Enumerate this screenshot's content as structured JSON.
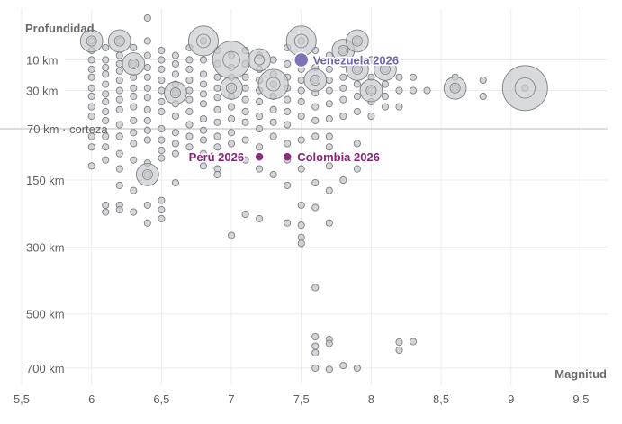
{
  "chart_data": {
    "type": "scatter",
    "xlabel": "Magnitud",
    "ylabel": "Profundidad",
    "xlim": [
      5.5,
      9.6
    ],
    "ylim_km": [
      0,
      750
    ],
    "y_scale": "sqrt",
    "grid": true,
    "x_ticks": [
      {
        "v": 5.5,
        "label": "5,5"
      },
      {
        "v": 6,
        "label": "6"
      },
      {
        "v": 6.5,
        "label": "6,5"
      },
      {
        "v": 7,
        "label": "7"
      },
      {
        "v": 7.5,
        "label": "7,5"
      },
      {
        "v": 8,
        "label": "8"
      },
      {
        "v": 8.5,
        "label": "8,5"
      },
      {
        "v": 9,
        "label": "9"
      },
      {
        "v": 9.5,
        "label": "9,5"
      }
    ],
    "y_ticks": [
      {
        "v": 10,
        "label": "10 km"
      },
      {
        "v": 30,
        "label": "30 km"
      },
      {
        "v": 150,
        "label": "150 km"
      },
      {
        "v": 300,
        "label": "300 km"
      },
      {
        "v": 500,
        "label": "500 km"
      },
      {
        "v": 700,
        "label": "700 km"
      }
    ],
    "reference_line": {
      "depth": 70,
      "label": "70 km · corteza"
    },
    "point_color": "#c9cbcf",
    "point_stroke": "#7a7d82",
    "highlights": [
      {
        "label": "Venezuela 2026",
        "mag": 7.5,
        "depth": 10,
        "color": "#7b74b8",
        "text_color": "#6d65ad",
        "anchor": "right"
      },
      {
        "label": "Perú 2026",
        "mag": 7.2,
        "depth": 110,
        "color": "#8a2d7f",
        "text_color": "#862577",
        "anchor": "left"
      },
      {
        "label": "Colombia 2026",
        "mag": 7.4,
        "depth": 110,
        "color": "#8a2d7f",
        "text_color": "#862577",
        "anchor": "right"
      }
    ],
    "points": [
      {
        "mag": 6.4,
        "depth": 0
      },
      {
        "mag": 6.0,
        "depth": 3
      },
      {
        "mag": 6.0,
        "depth": 6
      },
      {
        "mag": 6.0,
        "depth": 10
      },
      {
        "mag": 6.0,
        "depth": 15
      },
      {
        "mag": 6.0,
        "depth": 20
      },
      {
        "mag": 6.0,
        "depth": 28
      },
      {
        "mag": 6.0,
        "depth": 35
      },
      {
        "mag": 6.0,
        "depth": 45
      },
      {
        "mag": 6.0,
        "depth": 55
      },
      {
        "mag": 6.0,
        "depth": 80
      },
      {
        "mag": 6.0,
        "depth": 95
      },
      {
        "mag": 6.0,
        "depth": 125
      },
      {
        "mag": 6.1,
        "depth": 5
      },
      {
        "mag": 6.1,
        "depth": 10
      },
      {
        "mag": 6.1,
        "depth": 14
      },
      {
        "mag": 6.1,
        "depth": 18
      },
      {
        "mag": 6.1,
        "depth": 25
      },
      {
        "mag": 6.1,
        "depth": 33
      },
      {
        "mag": 6.1,
        "depth": 40
      },
      {
        "mag": 6.1,
        "depth": 50
      },
      {
        "mag": 6.1,
        "depth": 60
      },
      {
        "mag": 6.1,
        "depth": 80
      },
      {
        "mag": 6.1,
        "depth": 95
      },
      {
        "mag": 6.1,
        "depth": 115
      },
      {
        "mag": 6.1,
        "depth": 200
      },
      {
        "mag": 6.1,
        "depth": 215
      },
      {
        "mag": 6.2,
        "depth": 3
      },
      {
        "mag": 6.2,
        "depth": 8
      },
      {
        "mag": 6.2,
        "depth": 12
      },
      {
        "mag": 6.2,
        "depth": 16
      },
      {
        "mag": 6.2,
        "depth": 22
      },
      {
        "mag": 6.2,
        "depth": 30
      },
      {
        "mag": 6.2,
        "depth": 38
      },
      {
        "mag": 6.2,
        "depth": 48
      },
      {
        "mag": 6.2,
        "depth": 65
      },
      {
        "mag": 6.2,
        "depth": 80
      },
      {
        "mag": 6.2,
        "depth": 105
      },
      {
        "mag": 6.2,
        "depth": 130
      },
      {
        "mag": 6.2,
        "depth": 160
      },
      {
        "mag": 6.2,
        "depth": 200
      },
      {
        "mag": 6.2,
        "depth": 210
      },
      {
        "mag": 6.3,
        "depth": 5
      },
      {
        "mag": 6.3,
        "depth": 12
      },
      {
        "mag": 6.3,
        "depth": 20
      },
      {
        "mag": 6.3,
        "depth": 28
      },
      {
        "mag": 6.3,
        "depth": 35
      },
      {
        "mag": 6.3,
        "depth": 45
      },
      {
        "mag": 6.3,
        "depth": 60
      },
      {
        "mag": 6.3,
        "depth": 75
      },
      {
        "mag": 6.3,
        "depth": 90
      },
      {
        "mag": 6.3,
        "depth": 115
      },
      {
        "mag": 6.3,
        "depth": 170
      },
      {
        "mag": 6.3,
        "depth": 215
      },
      {
        "mag": 6.4,
        "depth": 3
      },
      {
        "mag": 6.4,
        "depth": 8
      },
      {
        "mag": 6.4,
        "depth": 14
      },
      {
        "mag": 6.4,
        "depth": 20
      },
      {
        "mag": 6.4,
        "depth": 28
      },
      {
        "mag": 6.4,
        "depth": 36
      },
      {
        "mag": 6.4,
        "depth": 48
      },
      {
        "mag": 6.4,
        "depth": 60
      },
      {
        "mag": 6.4,
        "depth": 72
      },
      {
        "mag": 6.4,
        "depth": 85
      },
      {
        "mag": 6.4,
        "depth": 120
      },
      {
        "mag": 6.4,
        "depth": 140
      },
      {
        "mag": 6.4,
        "depth": 200
      },
      {
        "mag": 6.4,
        "depth": 240
      },
      {
        "mag": 6.5,
        "depth": 6
      },
      {
        "mag": 6.5,
        "depth": 10
      },
      {
        "mag": 6.5,
        "depth": 15
      },
      {
        "mag": 6.5,
        "depth": 22
      },
      {
        "mag": 6.5,
        "depth": 30
      },
      {
        "mag": 6.5,
        "depth": 40
      },
      {
        "mag": 6.5,
        "depth": 50
      },
      {
        "mag": 6.5,
        "depth": 70
      },
      {
        "mag": 6.5,
        "depth": 85
      },
      {
        "mag": 6.5,
        "depth": 100
      },
      {
        "mag": 6.5,
        "depth": 112
      },
      {
        "mag": 6.5,
        "depth": 190
      },
      {
        "mag": 6.5,
        "depth": 210
      },
      {
        "mag": 6.5,
        "depth": 230
      },
      {
        "mag": 6.6,
        "depth": 8
      },
      {
        "mag": 6.6,
        "depth": 12
      },
      {
        "mag": 6.6,
        "depth": 18
      },
      {
        "mag": 6.6,
        "depth": 25
      },
      {
        "mag": 6.6,
        "depth": 32
      },
      {
        "mag": 6.6,
        "depth": 42
      },
      {
        "mag": 6.6,
        "depth": 55
      },
      {
        "mag": 6.6,
        "depth": 75
      },
      {
        "mag": 6.6,
        "depth": 90
      },
      {
        "mag": 6.6,
        "depth": 105
      },
      {
        "mag": 6.6,
        "depth": 155
      },
      {
        "mag": 6.7,
        "depth": 5
      },
      {
        "mag": 6.7,
        "depth": 10
      },
      {
        "mag": 6.7,
        "depth": 15
      },
      {
        "mag": 6.7,
        "depth": 22
      },
      {
        "mag": 6.7,
        "depth": 30
      },
      {
        "mag": 6.7,
        "depth": 38
      },
      {
        "mag": 6.7,
        "depth": 50
      },
      {
        "mag": 6.7,
        "depth": 65
      },
      {
        "mag": 6.7,
        "depth": 80
      },
      {
        "mag": 6.7,
        "depth": 95
      },
      {
        "mag": 6.8,
        "depth": 3
      },
      {
        "mag": 6.8,
        "depth": 10
      },
      {
        "mag": 6.8,
        "depth": 18
      },
      {
        "mag": 6.8,
        "depth": 25
      },
      {
        "mag": 6.8,
        "depth": 33
      },
      {
        "mag": 6.8,
        "depth": 42
      },
      {
        "mag": 6.8,
        "depth": 58
      },
      {
        "mag": 6.8,
        "depth": 72
      },
      {
        "mag": 6.8,
        "depth": 85
      },
      {
        "mag": 6.8,
        "depth": 105
      },
      {
        "mag": 6.8,
        "depth": 125
      },
      {
        "mag": 6.9,
        "depth": 6
      },
      {
        "mag": 6.9,
        "depth": 12
      },
      {
        "mag": 6.9,
        "depth": 20
      },
      {
        "mag": 6.9,
        "depth": 28
      },
      {
        "mag": 6.9,
        "depth": 36
      },
      {
        "mag": 6.9,
        "depth": 48
      },
      {
        "mag": 6.9,
        "depth": 62
      },
      {
        "mag": 6.9,
        "depth": 80
      },
      {
        "mag": 6.9,
        "depth": 95
      },
      {
        "mag": 6.9,
        "depth": 130
      },
      {
        "mag": 6.9,
        "depth": 140
      },
      {
        "mag": 7.0,
        "depth": 8
      },
      {
        "mag": 7.0,
        "depth": 14
      },
      {
        "mag": 7.0,
        "depth": 20
      },
      {
        "mag": 7.0,
        "depth": 28
      },
      {
        "mag": 7.0,
        "depth": 35
      },
      {
        "mag": 7.0,
        "depth": 45
      },
      {
        "mag": 7.0,
        "depth": 58
      },
      {
        "mag": 7.0,
        "depth": 75
      },
      {
        "mag": 7.0,
        "depth": 90
      },
      {
        "mag": 7.0,
        "depth": 110
      },
      {
        "mag": 7.0,
        "depth": 270
      },
      {
        "mag": 7.1,
        "depth": 6
      },
      {
        "mag": 7.1,
        "depth": 12
      },
      {
        "mag": 7.1,
        "depth": 20
      },
      {
        "mag": 7.1,
        "depth": 28
      },
      {
        "mag": 7.1,
        "depth": 38
      },
      {
        "mag": 7.1,
        "depth": 50
      },
      {
        "mag": 7.1,
        "depth": 62
      },
      {
        "mag": 7.1,
        "depth": 85
      },
      {
        "mag": 7.1,
        "depth": 115
      },
      {
        "mag": 7.1,
        "depth": 220
      },
      {
        "mag": 7.2,
        "depth": 8
      },
      {
        "mag": 7.2,
        "depth": 15
      },
      {
        "mag": 7.2,
        "depth": 22
      },
      {
        "mag": 7.2,
        "depth": 30
      },
      {
        "mag": 7.2,
        "depth": 40
      },
      {
        "mag": 7.2,
        "depth": 55
      },
      {
        "mag": 7.2,
        "depth": 70
      },
      {
        "mag": 7.2,
        "depth": 95
      },
      {
        "mag": 7.2,
        "depth": 130
      },
      {
        "mag": 7.2,
        "depth": 230
      },
      {
        "mag": 7.3,
        "depth": 10
      },
      {
        "mag": 7.3,
        "depth": 18
      },
      {
        "mag": 7.3,
        "depth": 25
      },
      {
        "mag": 7.3,
        "depth": 35
      },
      {
        "mag": 7.3,
        "depth": 48
      },
      {
        "mag": 7.3,
        "depth": 62
      },
      {
        "mag": 7.3,
        "depth": 80
      },
      {
        "mag": 7.3,
        "depth": 140
      },
      {
        "mag": 7.4,
        "depth": 5
      },
      {
        "mag": 7.4,
        "depth": 12
      },
      {
        "mag": 7.4,
        "depth": 20
      },
      {
        "mag": 7.4,
        "depth": 28
      },
      {
        "mag": 7.4,
        "depth": 38
      },
      {
        "mag": 7.4,
        "depth": 50
      },
      {
        "mag": 7.4,
        "depth": 65
      },
      {
        "mag": 7.4,
        "depth": 90
      },
      {
        "mag": 7.4,
        "depth": 115
      },
      {
        "mag": 7.4,
        "depth": 160
      },
      {
        "mag": 7.4,
        "depth": 240
      },
      {
        "mag": 7.5,
        "depth": 3
      },
      {
        "mag": 7.5,
        "depth": 15
      },
      {
        "mag": 7.5,
        "depth": 22
      },
      {
        "mag": 7.5,
        "depth": 30
      },
      {
        "mag": 7.5,
        "depth": 40
      },
      {
        "mag": 7.5,
        "depth": 55
      },
      {
        "mag": 7.5,
        "depth": 85
      },
      {
        "mag": 7.5,
        "depth": 130
      },
      {
        "mag": 7.5,
        "depth": 200
      },
      {
        "mag": 7.5,
        "depth": 245
      },
      {
        "mag": 7.5,
        "depth": 275
      },
      {
        "mag": 7.5,
        "depth": 290
      },
      {
        "mag": 7.6,
        "depth": 6
      },
      {
        "mag": 7.6,
        "depth": 14
      },
      {
        "mag": 7.6,
        "depth": 22
      },
      {
        "mag": 7.6,
        "depth": 32
      },
      {
        "mag": 7.6,
        "depth": 45
      },
      {
        "mag": 7.6,
        "depth": 60
      },
      {
        "mag": 7.6,
        "depth": 80
      },
      {
        "mag": 7.6,
        "depth": 155
      },
      {
        "mag": 7.6,
        "depth": 205
      },
      {
        "mag": 7.6,
        "depth": 415
      },
      {
        "mag": 7.6,
        "depth": 580
      },
      {
        "mag": 7.6,
        "depth": 615
      },
      {
        "mag": 7.6,
        "depth": 640
      },
      {
        "mag": 7.6,
        "depth": 700
      },
      {
        "mag": 7.7,
        "depth": 8
      },
      {
        "mag": 7.7,
        "depth": 15
      },
      {
        "mag": 7.7,
        "depth": 22
      },
      {
        "mag": 7.7,
        "depth": 30
      },
      {
        "mag": 7.7,
        "depth": 42
      },
      {
        "mag": 7.7,
        "depth": 58
      },
      {
        "mag": 7.7,
        "depth": 80
      },
      {
        "mag": 7.7,
        "depth": 95
      },
      {
        "mag": 7.7,
        "depth": 125
      },
      {
        "mag": 7.7,
        "depth": 170
      },
      {
        "mag": 7.7,
        "depth": 240
      },
      {
        "mag": 7.7,
        "depth": 590
      },
      {
        "mag": 7.7,
        "depth": 605
      },
      {
        "mag": 7.7,
        "depth": 705
      },
      {
        "mag": 7.8,
        "depth": 6
      },
      {
        "mag": 7.8,
        "depth": 12
      },
      {
        "mag": 7.8,
        "depth": 20
      },
      {
        "mag": 7.8,
        "depth": 28
      },
      {
        "mag": 7.8,
        "depth": 38
      },
      {
        "mag": 7.8,
        "depth": 55
      },
      {
        "mag": 7.8,
        "depth": 110
      },
      {
        "mag": 7.8,
        "depth": 150
      },
      {
        "mag": 7.8,
        "depth": 690
      },
      {
        "mag": 7.9,
        "depth": 3
      },
      {
        "mag": 7.9,
        "depth": 15
      },
      {
        "mag": 7.9,
        "depth": 25
      },
      {
        "mag": 7.9,
        "depth": 35
      },
      {
        "mag": 7.9,
        "depth": 50
      },
      {
        "mag": 7.9,
        "depth": 90
      },
      {
        "mag": 7.9,
        "depth": 130
      },
      {
        "mag": 7.9,
        "depth": 700
      },
      {
        "mag": 8.0,
        "depth": 10
      },
      {
        "mag": 8.0,
        "depth": 20
      },
      {
        "mag": 8.0,
        "depth": 30
      },
      {
        "mag": 8.0,
        "depth": 40
      },
      {
        "mag": 8.0,
        "depth": 55
      },
      {
        "mag": 8.1,
        "depth": 15
      },
      {
        "mag": 8.1,
        "depth": 25
      },
      {
        "mag": 8.1,
        "depth": 35
      },
      {
        "mag": 8.1,
        "depth": 45
      },
      {
        "mag": 8.2,
        "depth": 20
      },
      {
        "mag": 8.2,
        "depth": 30
      },
      {
        "mag": 8.2,
        "depth": 45
      },
      {
        "mag": 8.2,
        "depth": 600
      },
      {
        "mag": 8.2,
        "depth": 630
      },
      {
        "mag": 8.3,
        "depth": 20
      },
      {
        "mag": 8.3,
        "depth": 30
      },
      {
        "mag": 8.3,
        "depth": 598
      },
      {
        "mag": 8.4,
        "depth": 30
      },
      {
        "mag": 8.6,
        "depth": 20
      },
      {
        "mag": 8.6,
        "depth": 28
      },
      {
        "mag": 8.8,
        "depth": 22
      },
      {
        "mag": 8.8,
        "depth": 35
      },
      {
        "mag": 9.1,
        "depth": 28
      }
    ],
    "big_circles": [
      {
        "mag": 6.0,
        "depth": 3,
        "size": 2
      },
      {
        "mag": 6.2,
        "depth": 3,
        "size": 2
      },
      {
        "mag": 6.3,
        "depth": 12,
        "size": 2
      },
      {
        "mag": 6.4,
        "depth": 140,
        "size": 2
      },
      {
        "mag": 6.6,
        "depth": 32,
        "size": 2
      },
      {
        "mag": 6.8,
        "depth": 3,
        "size": 3
      },
      {
        "mag": 7.0,
        "depth": 10,
        "size": 4
      },
      {
        "mag": 7.0,
        "depth": 28,
        "size": 2
      },
      {
        "mag": 7.2,
        "depth": 10,
        "size": 2
      },
      {
        "mag": 7.3,
        "depth": 25,
        "size": 3
      },
      {
        "mag": 7.5,
        "depth": 3,
        "size": 3
      },
      {
        "mag": 7.6,
        "depth": 22,
        "size": 2
      },
      {
        "mag": 7.8,
        "depth": 6,
        "size": 2
      },
      {
        "mag": 7.9,
        "depth": 3,
        "size": 2
      },
      {
        "mag": 7.9,
        "depth": 15,
        "size": 2
      },
      {
        "mag": 8.0,
        "depth": 30,
        "size": 2
      },
      {
        "mag": 8.1,
        "depth": 15,
        "size": 2
      },
      {
        "mag": 8.6,
        "depth": 28,
        "size": 2
      },
      {
        "mag": 9.1,
        "depth": 28,
        "size": 5
      }
    ]
  }
}
